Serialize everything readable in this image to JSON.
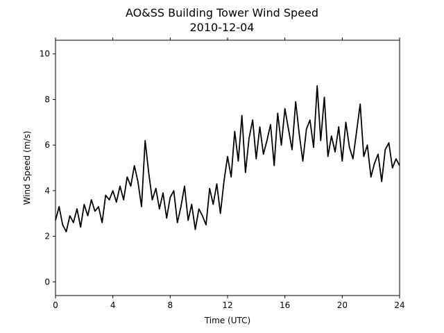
{
  "chart_data": {
    "type": "line",
    "title": "AO&SS Building Tower Wind Speed",
    "subtitle": "2010-12-04",
    "xlabel": "Time (UTC)",
    "ylabel": "Wind Speed (m/s)",
    "xlim": [
      0,
      24
    ],
    "ylim": [
      -0.6,
      10.6
    ],
    "xticks": [
      0,
      4,
      8,
      12,
      16,
      20,
      24
    ],
    "yticks": [
      0,
      2,
      4,
      6,
      8,
      10
    ],
    "grid": false,
    "legend": "none",
    "series": [
      {
        "color": "#000000",
        "x": [
          0,
          0.25,
          0.5,
          0.75,
          1,
          1.25,
          1.5,
          1.75,
          2,
          2.25,
          2.5,
          2.75,
          3,
          3.25,
          3.5,
          3.75,
          4,
          4.25,
          4.5,
          4.75,
          5,
          5.25,
          5.5,
          5.75,
          6,
          6.25,
          6.5,
          6.75,
          7,
          7.25,
          7.5,
          7.75,
          8,
          8.25,
          8.5,
          8.75,
          9,
          9.25,
          9.5,
          9.75,
          10,
          10.25,
          10.5,
          10.75,
          11,
          11.25,
          11.5,
          11.75,
          12,
          12.25,
          12.5,
          12.75,
          13,
          13.25,
          13.5,
          13.75,
          14,
          14.25,
          14.5,
          14.75,
          15,
          15.25,
          15.5,
          15.75,
          16,
          16.25,
          16.5,
          16.75,
          17,
          17.25,
          17.5,
          17.75,
          18,
          18.25,
          18.5,
          18.75,
          19,
          19.25,
          19.5,
          19.75,
          20,
          20.25,
          20.5,
          20.75,
          21,
          21.25,
          21.5,
          21.75,
          22,
          22.25,
          22.5,
          22.75,
          23,
          23.25,
          23.5,
          23.75,
          24
        ],
        "values": [
          2.7,
          3.3,
          2.5,
          2.2,
          2.9,
          2.6,
          3.2,
          2.4,
          3.4,
          2.9,
          3.6,
          3.1,
          3.3,
          2.6,
          3.8,
          3.6,
          4.0,
          3.5,
          4.2,
          3.6,
          4.6,
          4.2,
          5.1,
          4.4,
          3.3,
          6.2,
          4.8,
          3.6,
          4.1,
          3.2,
          3.9,
          2.8,
          3.7,
          4.0,
          2.6,
          3.3,
          4.2,
          2.7,
          3.4,
          2.3,
          3.2,
          2.9,
          2.5,
          4.1,
          3.4,
          4.3,
          3.0,
          4.4,
          5.5,
          4.6,
          6.6,
          5.3,
          7.3,
          4.8,
          6.3,
          7.1,
          5.4,
          6.8,
          5.6,
          6.2,
          6.9,
          5.1,
          7.4,
          6.0,
          7.6,
          6.7,
          5.8,
          7.9,
          6.5,
          5.3,
          6.7,
          7.1,
          5.9,
          8.6,
          6.2,
          8.1,
          5.5,
          6.4,
          5.7,
          6.8,
          5.3,
          7.0,
          5.9,
          5.4,
          6.6,
          7.8,
          5.5,
          6.0,
          4.6,
          5.2,
          5.6,
          4.4,
          5.8,
          6.1,
          5.0,
          5.4,
          5.1
        ]
      }
    ]
  }
}
